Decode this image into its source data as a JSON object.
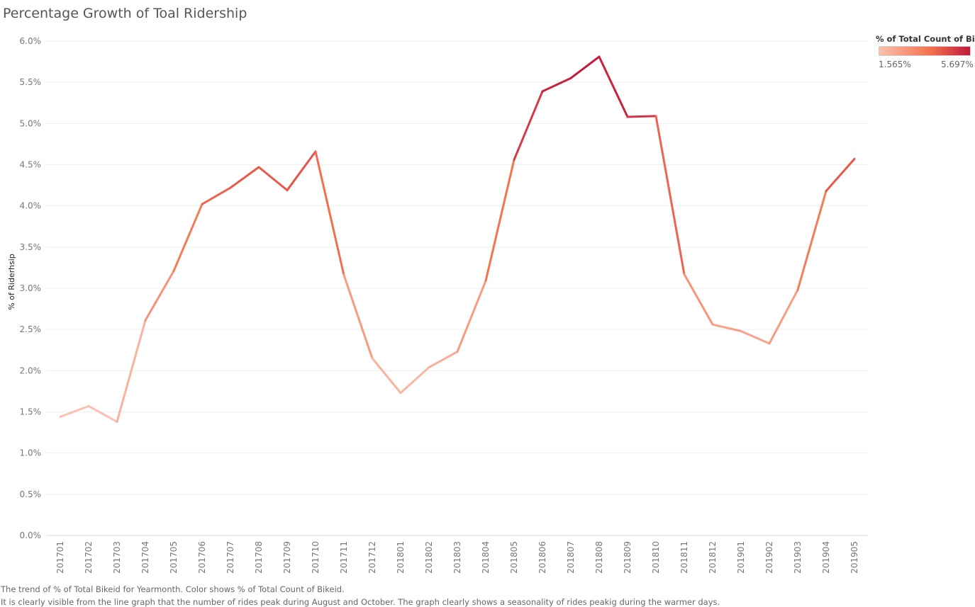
{
  "chart_data": {
    "type": "line",
    "title": "Percentage Growth of Toal Ridership",
    "xlabel": "",
    "ylabel": "% of Riderhsip",
    "ylim": [
      0,
      6.0
    ],
    "ytick_labels": [
      "0.0%",
      "0.5%",
      "1.0%",
      "1.5%",
      "2.0%",
      "2.5%",
      "3.0%",
      "3.5%",
      "4.0%",
      "4.5%",
      "5.0%",
      "5.5%",
      "6.0%"
    ],
    "categories": [
      "201701",
      "201702",
      "201703",
      "201704",
      "201705",
      "201706",
      "201707",
      "201708",
      "201709",
      "201710",
      "201711",
      "201712",
      "201801",
      "201802",
      "201803",
      "201804",
      "201805",
      "201806",
      "201807",
      "201808",
      "201809",
      "201810",
      "201811",
      "201812",
      "201901",
      "201902",
      "201903",
      "201904",
      "201905"
    ],
    "values": [
      1.44,
      1.57,
      1.38,
      2.61,
      3.21,
      4.02,
      4.22,
      4.47,
      4.19,
      4.66,
      3.16,
      2.15,
      1.73,
      2.04,
      2.23,
      3.09,
      4.56,
      5.39,
      5.55,
      5.81,
      5.08,
      5.09,
      3.17,
      2.56,
      2.48,
      2.33,
      2.98,
      4.18,
      4.57
    ],
    "grid": true,
    "color_legend": {
      "title": "% of Total Count of Bik..",
      "min_label": "1.565%",
      "max_label": "5.697%",
      "min_value": 1.565,
      "max_value": 5.697,
      "colors": [
        "#fcc0b0",
        "#f4734f",
        "#c2183c"
      ]
    }
  },
  "captions": {
    "line1": "The trend of % of Total Bikeid for Yearmonth.  Color shows % of Total Count of Bikeid.",
    "line2": "It is clearly visible from the line graph that the number of rides peak during August and October. The graph clearly shows a seasonality of rides peakig during the warmer days."
  }
}
